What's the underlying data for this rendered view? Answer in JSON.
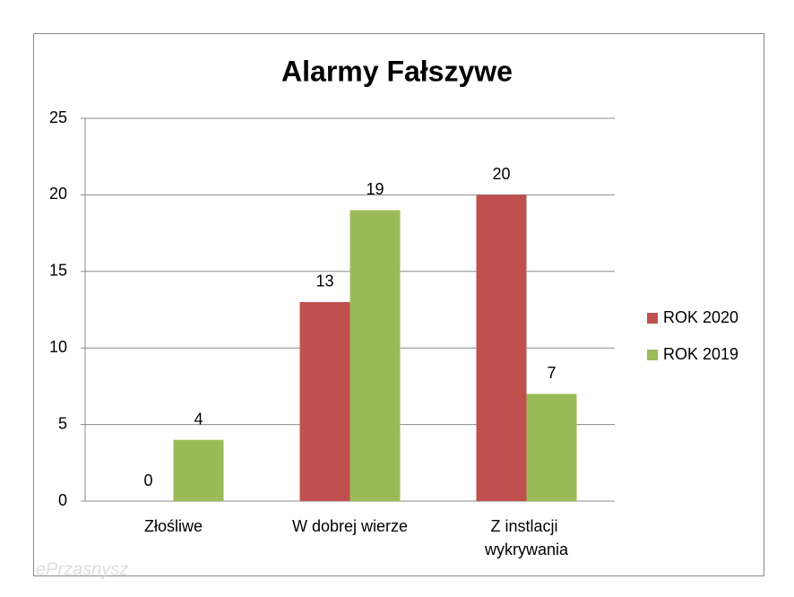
{
  "chart_data": {
    "type": "bar",
    "title": "Alarmy Fałszywe",
    "categories": [
      "Złośliwe",
      "W dobrej wierze",
      "Z instlacji wykrywania"
    ],
    "series": [
      {
        "name": "ROK 2020",
        "color": "#c0504d",
        "values": [
          0,
          13,
          20
        ]
      },
      {
        "name": "ROK 2019",
        "color": "#9bbb59",
        "values": [
          4,
          19,
          7
        ]
      }
    ],
    "ylim": [
      0,
      25
    ],
    "yticks": [
      0,
      5,
      10,
      15,
      20,
      25
    ],
    "grid": true,
    "legend": "right",
    "watermark": "ePrzasnysz"
  }
}
